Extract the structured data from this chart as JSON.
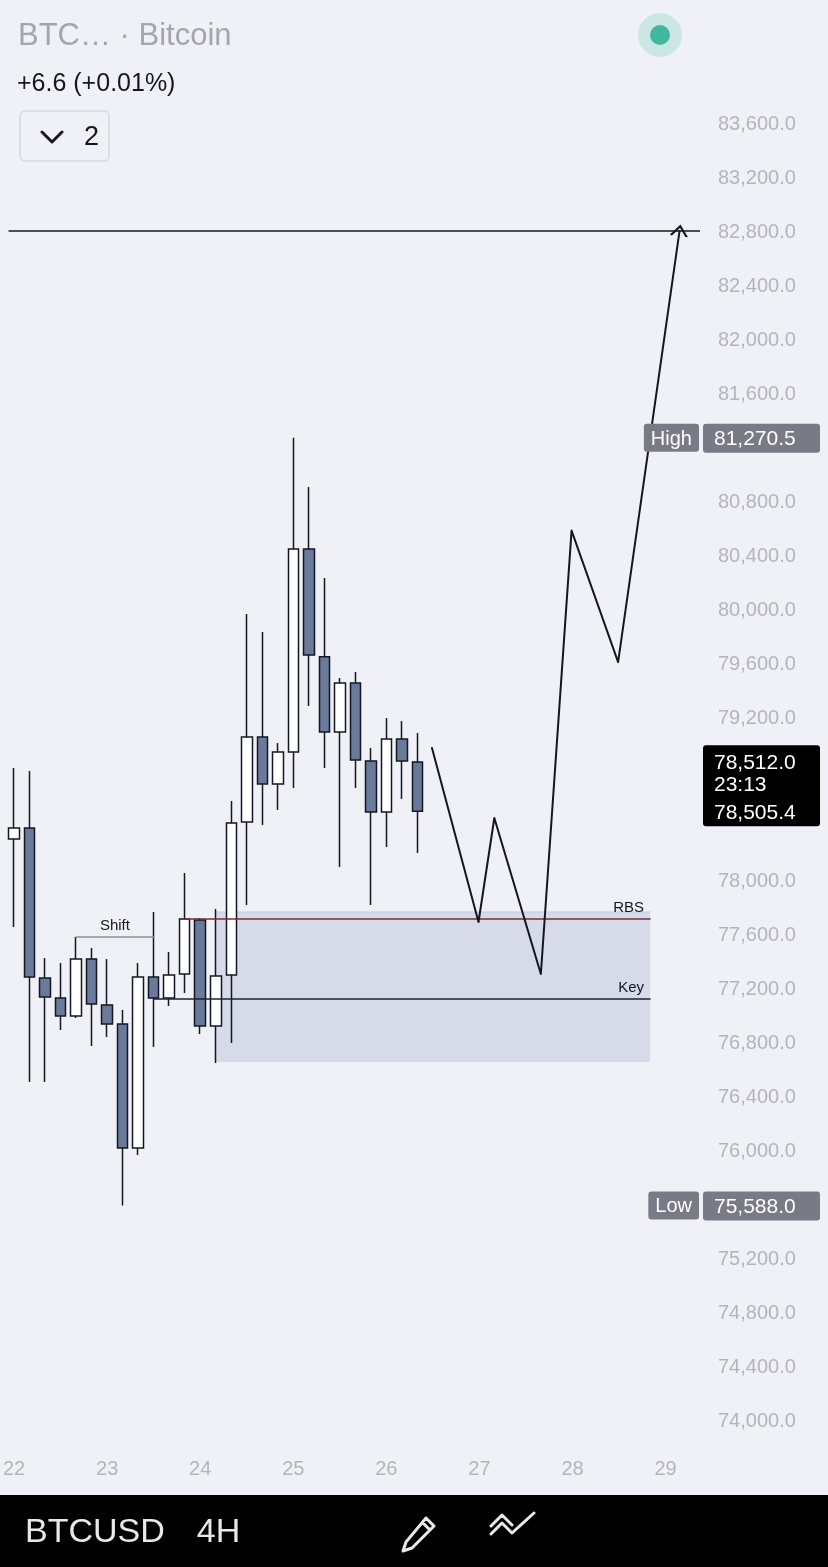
{
  "chart_data": {
    "type": "candlestick",
    "title": "BTC… · Bitcoin",
    "subtitle": "+6.6 (+0.01%)",
    "series": [
      {
        "type": "line",
        "x": [
          24.1667,
          28.8333
        ],
        "values": [
          77760,
          77760
        ],
        "lower": [
          76650,
          76650
        ],
        "upper": [
          77760,
          77760
        ],
        "color": "#c5cbe0"
      },
      {
        "type": "line",
        "name": "Shift",
        "x": [
          22.6667,
          23.5
        ],
        "values": [
          77575,
          77575
        ],
        "color": "#8a8e99"
      },
      {
        "type": "line",
        "name": "RBS",
        "x": [
          23.8333,
          28.8333
        ],
        "values": [
          77708,
          77708
        ],
        "color": "#7a2c38"
      },
      {
        "type": "line",
        "name": "Key",
        "x": [
          23.5,
          28.8333
        ],
        "values": [
          77116,
          77116
        ],
        "color": "#1e2233"
      },
      {
        "type": "line",
        "x": [
          26.49,
          26.99,
          27.16,
          27.66,
          27.99,
          28.49,
          29.15
        ],
        "values": [
          78974,
          77686,
          78456,
          77301,
          80583,
          79610,
          82800
        ],
        "color": "#131722"
      },
      {
        "x": [
          22,
          22.1667,
          22.3333,
          22.5,
          22.6667,
          22.8333,
          23,
          23.1667,
          23.3333,
          23.5,
          23.6667,
          23.8333,
          24,
          24.1667,
          24.3333,
          24.5,
          24.6667,
          24.8333,
          25,
          25.1667,
          25.3333,
          25.5,
          25.6667,
          25.8333,
          26,
          26.1667,
          26.3333
        ],
        "ohlc": [
          [
            78300,
            78826,
            77649,
            78382
          ],
          [
            78382,
            78804,
            76502,
            77279
          ],
          [
            77272,
            77420,
            76502,
            77131
          ],
          [
            77124,
            77383,
            76887,
            76990
          ],
          [
            76990,
            77575,
            76975,
            77412
          ],
          [
            77412,
            77494,
            76768,
            77079
          ],
          [
            77072,
            77412,
            76835,
            76931
          ],
          [
            76931,
            77035,
            75588,
            76013
          ],
          [
            76013,
            77383,
            75961,
            77279
          ],
          [
            77279,
            77760,
            76761,
            77124
          ],
          [
            77124,
            77464,
            77064,
            77294
          ],
          [
            77301,
            78049,
            77161,
            77708
          ],
          [
            77701,
            77716,
            76857,
            76916
          ],
          [
            76916,
            77782,
            76642,
            77286
          ],
          [
            77294,
            78582,
            76790,
            78419
          ],
          [
            78426,
            79966,
            77812,
            79055
          ],
          [
            79055,
            79833,
            78404,
            78707
          ],
          [
            78707,
            79011,
            78515,
            78944
          ],
          [
            78944,
            81270.5,
            78678,
            80447
          ],
          [
            80447,
            80906,
            79285,
            79662
          ],
          [
            79650,
            80232,
            78826,
            79092
          ],
          [
            79092,
            79492,
            78093,
            79455
          ],
          [
            79455,
            79536,
            78678,
            78885
          ],
          [
            78878,
            78974,
            77812,
            78500
          ],
          [
            78500,
            79196,
            78241,
            79041
          ],
          [
            79041,
            79174,
            78596,
            78878
          ],
          [
            78870,
            79085,
            78197,
            78505.4
          ]
        ],
        "colors": [
          "#ffffff",
          "#6a7a9b",
          "#6a7a9b",
          "#6a7a9b",
          "#ffffff",
          "#6a7a9b",
          "#6a7a9b",
          "#6a7a9b",
          "#ffffff",
          "#6a7a9b",
          "#ffffff",
          "#ffffff",
          "#6a7a9b",
          "#ffffff",
          "#ffffff",
          "#ffffff",
          "#6a7a9b",
          "#ffffff",
          "#ffffff",
          "#6a7a9b",
          "#6a7a9b",
          "#ffffff",
          "#6a7a9b",
          "#6a7a9b",
          "#ffffff",
          "#6a7a9b",
          "#6a7a9b"
        ]
      }
    ],
    "xlim": [
      21.94,
      29.37
    ],
    "xticks": [
      22,
      23,
      24,
      25,
      26,
      27,
      28,
      29
    ],
    "ylim": [
      74000,
      83600
    ],
    "yticks": [
      {
        "value": 74000,
        "label": "74,000.0"
      },
      {
        "value": 74400,
        "label": "74,400.0"
      },
      {
        "value": 74800,
        "label": "74,800.0"
      },
      {
        "value": 75200,
        "label": "75,200.0"
      },
      {
        "value": 76000,
        "label": "76,000.0"
      },
      {
        "value": 76400,
        "label": "76,400.0"
      },
      {
        "value": 76800,
        "label": "76,800.0"
      },
      {
        "value": 77200,
        "label": "77,200.0"
      },
      {
        "value": 77600,
        "label": "77,600.0"
      },
      {
        "value": 78000,
        "label": "78,000.0"
      },
      {
        "value": 79200,
        "label": "79,200.0"
      },
      {
        "value": 79600,
        "label": "79,600.0"
      },
      {
        "value": 80000,
        "label": "80,000.0"
      },
      {
        "value": 80400,
        "label": "80,400.0"
      },
      {
        "value": 80800,
        "label": "80,800.0"
      },
      {
        "value": 81600,
        "label": "81,600.0"
      },
      {
        "value": 82000,
        "label": "82,000.0"
      },
      {
        "value": 82400,
        "label": "82,400.0"
      },
      {
        "value": 82800,
        "label": "82,800.0"
      },
      {
        "value": 83200,
        "label": "83,200.0"
      },
      {
        "value": 83600,
        "label": "83,600.0"
      }
    ],
    "ref_lines": [
      {
        "axis": "y",
        "value": 82800,
        "color": "#131722"
      }
    ],
    "annotations": [
      "High",
      "81,270.5",
      "Low",
      "75,588.0",
      "78,512.0",
      "23:13",
      "78,505.4",
      "2",
      "BTCUSD",
      "4H"
    ]
  }
}
